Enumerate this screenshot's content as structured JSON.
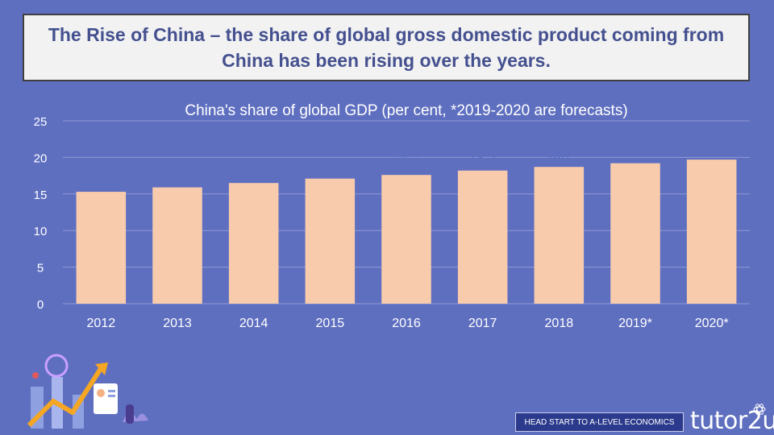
{
  "header": {
    "title": "The Rise of China – the share of global gross domestic product coming from China has been rising over the years."
  },
  "chart_data": {
    "type": "bar",
    "title": "China's share of global GDP (per cent, *2019-2020 are forecasts)",
    "categories": [
      "2012",
      "2013",
      "2014",
      "2015",
      "2016",
      "2017",
      "2018",
      "2019*",
      "2020*"
    ],
    "values": [
      15.3,
      15.9,
      16.5,
      17.1,
      17.6,
      18.2,
      18.7,
      19.2,
      19.7
    ],
    "yticks": [
      0,
      5,
      10,
      15,
      20,
      25
    ],
    "ylim": [
      0,
      25
    ],
    "xlabel": "",
    "ylabel": "",
    "grid": true,
    "colors": {
      "bar": "#f8cbad",
      "grid": "#8f99d3",
      "text": "#ffffff",
      "label": "#5f6fc0"
    }
  },
  "footer": {
    "tagline": "HEAD START TO A-LEVEL ECONOMICS",
    "logo": "tutor2u"
  }
}
